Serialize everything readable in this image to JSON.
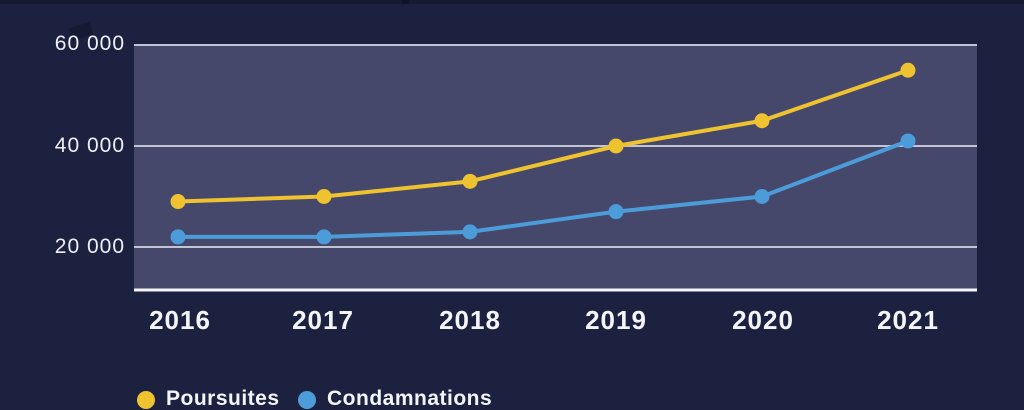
{
  "chart_data": {
    "type": "line",
    "categories": [
      "2016",
      "2017",
      "2018",
      "2019",
      "2020",
      "2021"
    ],
    "series": [
      {
        "name": "Poursuites",
        "color": "#eec32f",
        "values": [
          29000,
          30000,
          33000,
          40000,
          45000,
          55000
        ]
      },
      {
        "name": "Condamnations",
        "color": "#4c9cd9",
        "values": [
          22000,
          22000,
          23000,
          27000,
          30000,
          41000
        ]
      }
    ],
    "y_tick_labels": [
      "60 000",
      "40 000",
      "20 000"
    ],
    "y_tick_values": [
      60000,
      40000,
      20000
    ],
    "ylim": [
      11500,
      60000
    ],
    "xlabel": "",
    "ylabel": "",
    "title": "",
    "grid": true,
    "legend_position": "bottom-left"
  },
  "colors": {
    "background": "#1c2140",
    "plot_fill": "#45486a",
    "gridline": "#c2c3d3",
    "axis_line": "#f3f4f8",
    "text": "#f0f1f7",
    "series_poursuites": "#eec32f",
    "series_condamnations": "#4c9cd9"
  },
  "legend": {
    "items": [
      {
        "label": "Poursuites"
      },
      {
        "label": "Condamnations"
      }
    ]
  }
}
